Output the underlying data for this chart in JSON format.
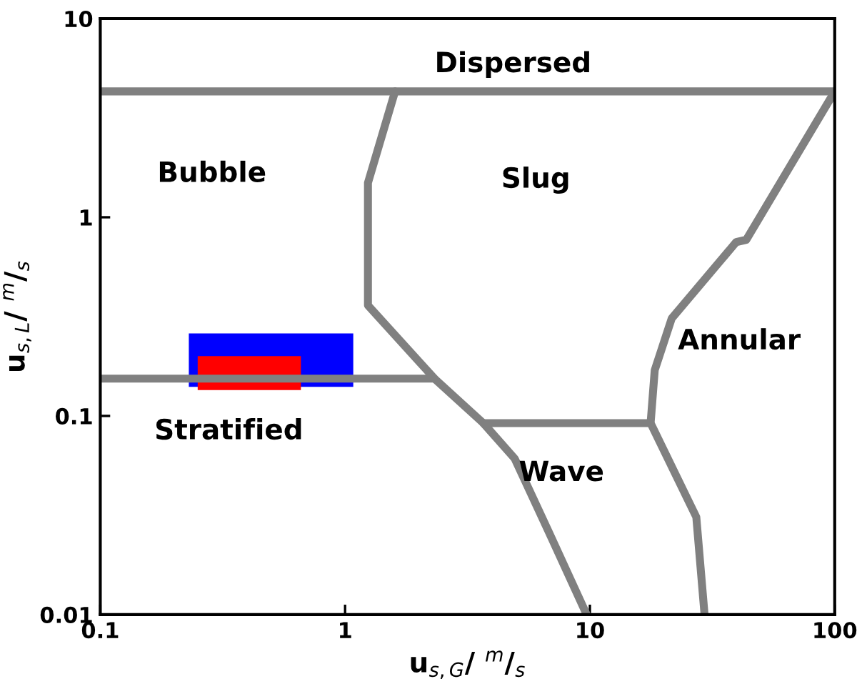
{
  "chart_data": {
    "type": "line",
    "log": "xy",
    "xlabel": "u$_{s,G}$/ $^{m}$/$_{s}$",
    "ylabel": "u$_{s,L}$/ $^{m}$/$_{s}$",
    "xlim": [
      0.1,
      100
    ],
    "ylim": [
      0.01,
      10
    ],
    "xticks": [
      0.1,
      1,
      10,
      100
    ],
    "yticks": [
      0.01,
      0.1,
      1,
      10
    ],
    "grid": false,
    "legend": false,
    "marker": "none",
    "line_style": "solid",
    "series": [
      {
        "type": "area",
        "color": "#0000ff",
        "x": [
          0.23,
          1.08,
          1.08,
          0.23
        ],
        "values": [
          0.14,
          0.14,
          0.26,
          0.26
        ]
      },
      {
        "type": "area",
        "color": "#ff0000",
        "x": [
          0.25,
          0.66,
          0.66,
          0.25
        ],
        "values": [
          0.135,
          0.135,
          0.2,
          0.2
        ]
      },
      {
        "color": "#808080",
        "x": [
          0.1,
          100
        ],
        "values": [
          4.3,
          4.3
        ]
      },
      {
        "color": "#808080",
        "x": [
          1.6,
          1.24,
          1.24,
          2.32,
          3.67,
          4.93,
          6.8,
          9.7
        ],
        "values": [
          4.3,
          1.49,
          0.36,
          0.154,
          0.092,
          0.061,
          0.026,
          0.01
        ]
      },
      {
        "color": "#808080",
        "x": [
          0.1,
          2.32
        ],
        "values": [
          0.154,
          0.154
        ]
      },
      {
        "color": "#808080",
        "x": [
          3.67,
          17.7
        ],
        "values": [
          0.092,
          0.092
        ]
      },
      {
        "color": "#808080",
        "x": [
          100,
          43.5,
          39.6,
          21.6,
          18.4,
          17.7,
          27.2,
          29.4
        ],
        "values": [
          4.3,
          0.77,
          0.75,
          0.31,
          0.17,
          0.092,
          0.031,
          0.01
        ]
      }
    ],
    "annotations": [
      "Dispersed",
      "Bubble",
      "Slug",
      "Annular",
      "Stratified",
      "Wave"
    ]
  }
}
